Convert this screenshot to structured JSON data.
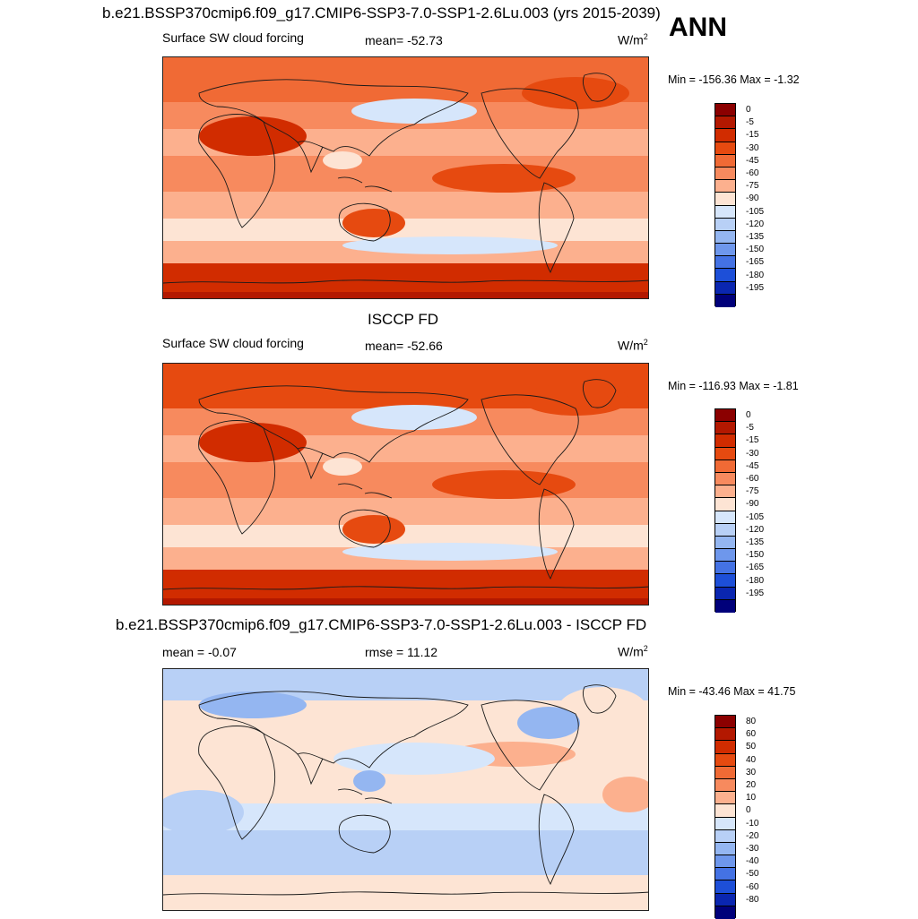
{
  "season": "ANN",
  "panels": [
    {
      "title": "b.e21.BSSP370cmip6.f09_g17.CMIP6-SSP3-7.0-SSP1-2.6Lu.003 (yrs 2015-2039)",
      "left_label": "Surface SW cloud forcing",
      "center_label": "mean= -52.73",
      "units": "W/m",
      "units_sup": "2",
      "minmax": "Min = -156.36 Max =  -1.32"
    },
    {
      "title": "ISCCP FD",
      "left_label": "Surface SW cloud forcing",
      "center_label": "mean= -52.66",
      "units": "W/m",
      "units_sup": "2",
      "minmax": "Min = -116.93 Max =  -1.81"
    },
    {
      "title": "b.e21.BSSP370cmip6.f09_g17.CMIP6-SSP3-7.0-SSP1-2.6Lu.003 - ISCCP FD",
      "left_label": "mean =  -0.07",
      "center_label": "rmse =  11.12",
      "units": "W/m",
      "units_sup": "2",
      "minmax": "Min = -43.46 Max =  41.75"
    }
  ],
  "chart_data": [
    {
      "type": "heatmap",
      "title": "b.e21.BSSP370cmip6.f09_g17.CMIP6-SSP3-7.0-SSP1-2.6Lu.003 (yrs 2015-2039)",
      "variable": "Surface SW cloud forcing",
      "units": "W/m2",
      "mean": -52.73,
      "min": -156.36,
      "max": -1.32,
      "colorbar_levels": [
        "0",
        "-5",
        "-15",
        "-30",
        "-45",
        "-60",
        "-75",
        "-90",
        "-105",
        "-120",
        "-135",
        "-150",
        "-165",
        "-180",
        "-195"
      ],
      "colorbar_colors": [
        "#8b0000",
        "#b31800",
        "#d12c00",
        "#e64a10",
        "#f06a35",
        "#f78a5e",
        "#fcb08e",
        "#fde4d4",
        "#d6e6fb",
        "#b8d0f6",
        "#94b6f1",
        "#6e97ec",
        "#4472e4",
        "#1d4fd8",
        "#0a26b0",
        "#00007a"
      ]
    },
    {
      "type": "heatmap",
      "title": "ISCCP FD",
      "variable": "Surface SW cloud forcing",
      "units": "W/m2",
      "mean": -52.66,
      "min": -116.93,
      "max": -1.81,
      "colorbar_levels": [
        "0",
        "-5",
        "-15",
        "-30",
        "-45",
        "-60",
        "-75",
        "-90",
        "-105",
        "-120",
        "-135",
        "-150",
        "-165",
        "-180",
        "-195"
      ],
      "colorbar_colors": [
        "#8b0000",
        "#b31800",
        "#d12c00",
        "#e64a10",
        "#f06a35",
        "#f78a5e",
        "#fcb08e",
        "#fde4d4",
        "#d6e6fb",
        "#b8d0f6",
        "#94b6f1",
        "#6e97ec",
        "#4472e4",
        "#1d4fd8",
        "#0a26b0",
        "#00007a"
      ]
    },
    {
      "type": "heatmap",
      "title": "b.e21.BSSP370cmip6.f09_g17.CMIP6-SSP3-7.0-SSP1-2.6Lu.003 - ISCCP FD",
      "units": "W/m2",
      "mean": -0.07,
      "rmse": 11.12,
      "min": -43.46,
      "max": 41.75,
      "colorbar_levels": [
        "80",
        "60",
        "50",
        "40",
        "30",
        "20",
        "10",
        "0",
        "-10",
        "-20",
        "-30",
        "-40",
        "-50",
        "-60",
        "-80"
      ],
      "colorbar_colors": [
        "#8b0000",
        "#b31800",
        "#d12c00",
        "#e64a10",
        "#f06a35",
        "#f78a5e",
        "#fcb08e",
        "#fde4d4",
        "#d6e6fb",
        "#b8d0f6",
        "#94b6f1",
        "#6e97ec",
        "#4472e4",
        "#1d4fd8",
        "#0a26b0",
        "#00007a"
      ]
    }
  ]
}
